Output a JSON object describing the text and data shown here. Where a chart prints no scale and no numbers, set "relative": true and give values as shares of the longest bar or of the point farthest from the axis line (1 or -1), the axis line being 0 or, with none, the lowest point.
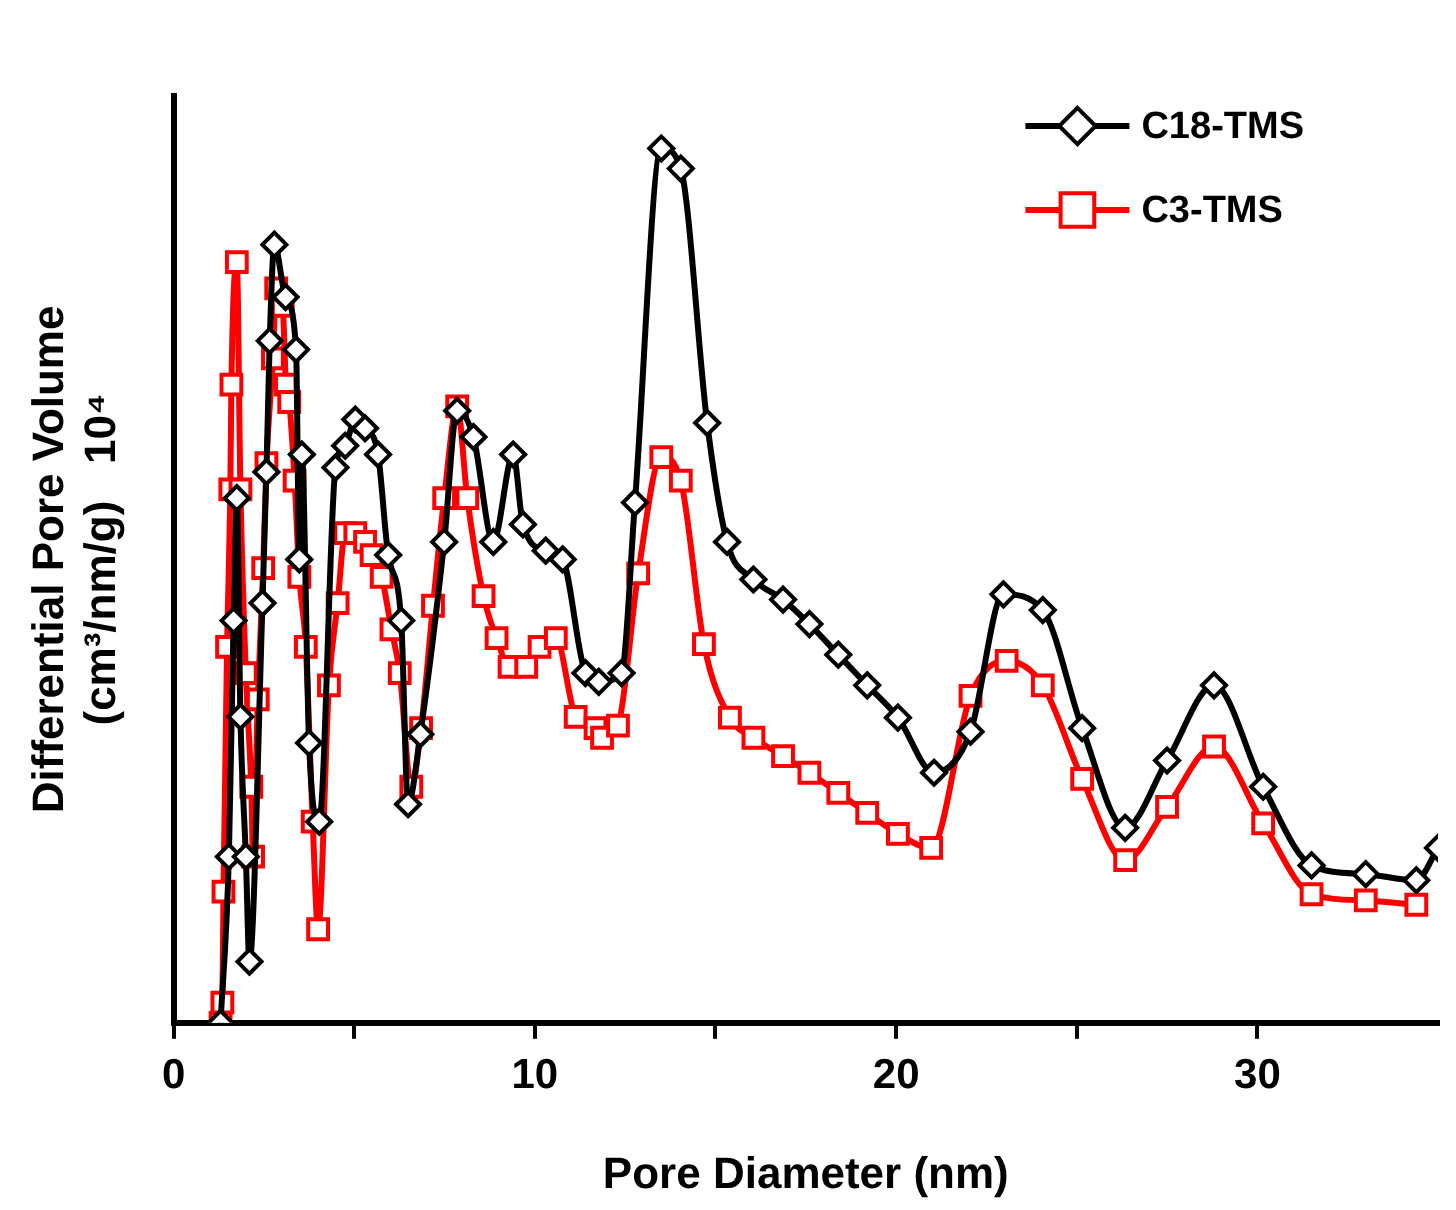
{
  "chart_data": {
    "type": "line",
    "relative": true,
    "xlabel": "Pore Diameter (nm)",
    "ylabel": "Differential Pore Volume\n(cm³/nm/g)   10⁴",
    "xlim": [
      0,
      35
    ],
    "xticks": [
      0,
      {
        "value": 5,
        "label": null
      },
      10,
      {
        "value": 15,
        "label": null
      },
      20,
      {
        "value": 25,
        "label": null
      },
      30
    ],
    "legend": "top right",
    "grid": false,
    "line_style": "solid",
    "series": [
      {
        "name": "C18-TMS",
        "color": "#000000",
        "marker": "diamond",
        "x": [
          1.3,
          1.53,
          1.66,
          1.75,
          1.85,
          2.0,
          2.1,
          2.46,
          2.57,
          2.66,
          2.79,
          3.1,
          3.39,
          3.48,
          3.55,
          3.75,
          4.03,
          4.48,
          4.75,
          5.03,
          5.3,
          5.66,
          5.94,
          6.3,
          6.49,
          6.83,
          7.49,
          7.85,
          8.3,
          8.85,
          9.4,
          9.67,
          10.3,
          10.77,
          11.4,
          11.77,
          12.4,
          12.77,
          13.5,
          14.04,
          14.77,
          15.32,
          16.05,
          16.87,
          17.6,
          18.4,
          19.2,
          20.05,
          21.05,
          22.06,
          22.97,
          24.06,
          25.15,
          26.34,
          27.5,
          28.8,
          30.16,
          31.5,
          33.0,
          34.4,
          35.0
        ],
        "values": [
          0,
          0.19,
          0.46,
          0.6,
          0.35,
          0.19,
          0.07,
          0.48,
          0.63,
          0.78,
          0.89,
          0.83,
          0.77,
          0.53,
          0.65,
          0.32,
          0.23,
          0.635,
          0.66,
          0.69,
          0.68,
          0.65,
          0.535,
          0.46,
          0.25,
          0.33,
          0.55,
          0.7,
          0.67,
          0.55,
          0.65,
          0.57,
          0.54,
          0.53,
          0.4,
          0.39,
          0.4,
          0.595,
          1.0,
          0.977,
          0.686,
          0.55,
          0.507,
          0.484,
          0.456,
          0.421,
          0.386,
          0.349,
          0.286,
          0.333,
          0.49,
          0.472,
          0.337,
          0.223,
          0.3,
          0.386,
          0.27,
          0.18,
          0.17,
          0.163,
          0.2
        ]
      },
      {
        "name": "C3-TMS",
        "color": "#ff0000",
        "marker": "square",
        "x": [
          1.3,
          1.35,
          1.38,
          1.48,
          1.57,
          1.6,
          1.75,
          1.85,
          2.0,
          2.15,
          2.2,
          2.33,
          2.48,
          2.57,
          2.75,
          2.84,
          3.02,
          3.11,
          3.2,
          3.35,
          3.48,
          3.66,
          3.85,
          4.0,
          4.3,
          4.54,
          4.75,
          5.03,
          5.3,
          5.48,
          5.76,
          6.03,
          6.26,
          6.58,
          6.85,
          7.18,
          7.49,
          7.85,
          8.13,
          8.58,
          8.94,
          9.3,
          9.76,
          10.13,
          10.58,
          11.13,
          11.68,
          11.86,
          12.3,
          12.86,
          13.5,
          14.04,
          14.68,
          15.4,
          16.05,
          16.87,
          17.6,
          18.4,
          19.2,
          20.05,
          20.97,
          22.06,
          23.06,
          24.06,
          25.15,
          26.34,
          27.5,
          28.8,
          30.16,
          31.5,
          33.0,
          34.4
        ],
        "values": [
          0,
          0.023,
          0.15,
          0.43,
          0.61,
          0.73,
          0.87,
          0.61,
          0.4,
          0.27,
          0.19,
          0.37,
          0.52,
          0.64,
          0.76,
          0.84,
          0.82,
          0.73,
          0.71,
          0.62,
          0.51,
          0.43,
          0.23,
          0.107,
          0.386,
          0.48,
          0.56,
          0.56,
          0.55,
          0.535,
          0.51,
          0.45,
          0.4,
          0.27,
          0.337,
          0.477,
          0.6,
          0.705,
          0.6,
          0.488,
          0.44,
          0.407,
          0.407,
          0.43,
          0.44,
          0.35,
          0.337,
          0.326,
          0.34,
          0.514,
          0.647,
          0.62,
          0.433,
          0.349,
          0.326,
          0.305,
          0.286,
          0.263,
          0.24,
          0.216,
          0.2,
          0.374,
          0.414,
          0.386,
          0.279,
          0.186,
          0.247,
          0.316,
          0.228,
          0.147,
          0.14,
          0.135
        ]
      }
    ]
  }
}
